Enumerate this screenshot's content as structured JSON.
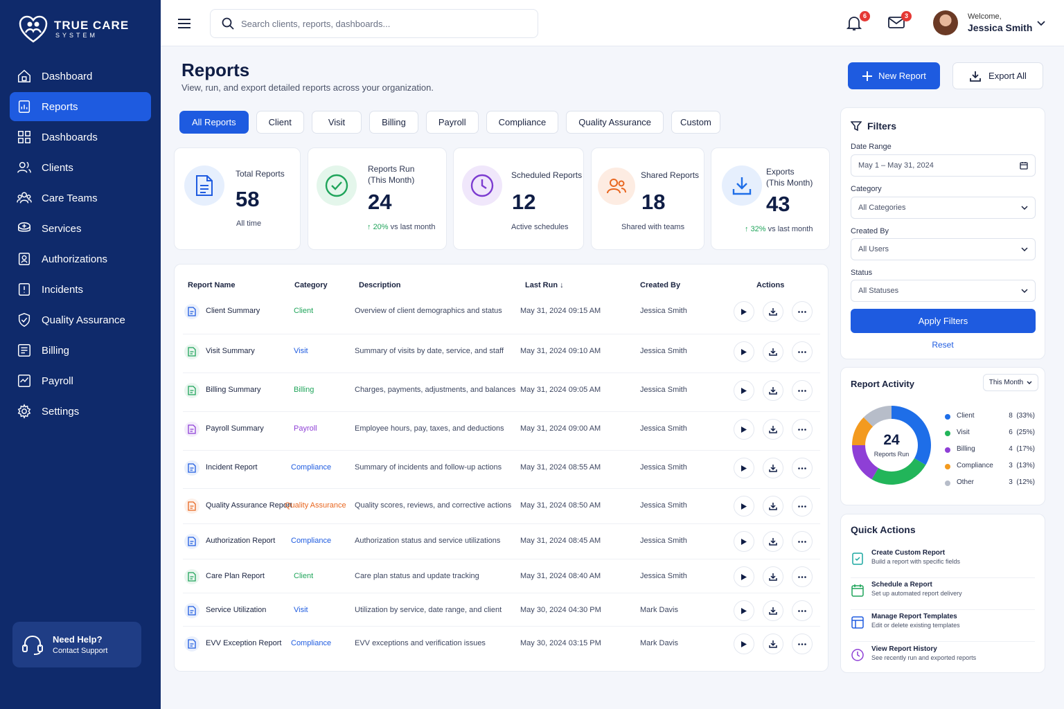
{
  "brand": {
    "name": "TRUE CARE",
    "sub": "SYSTEM"
  },
  "sidebar": {
    "items": [
      {
        "label": "Dashboard",
        "icon": "home-icon"
      },
      {
        "label": "Reports",
        "icon": "report-icon",
        "active": true
      },
      {
        "label": "Dashboards",
        "icon": "grid-icon"
      },
      {
        "label": "Clients",
        "icon": "users-icon"
      },
      {
        "label": "Care Teams",
        "icon": "team-icon"
      },
      {
        "label": "Services",
        "icon": "services-icon"
      },
      {
        "label": "Authorizations",
        "icon": "authorization-icon"
      },
      {
        "label": "Incidents",
        "icon": "incident-icon"
      },
      {
        "label": "Quality Assurance",
        "icon": "shield-check-icon"
      },
      {
        "label": "Billing",
        "icon": "billing-icon"
      },
      {
        "label": "Payroll",
        "icon": "payroll-icon"
      },
      {
        "label": "Settings",
        "icon": "gear-icon"
      }
    ],
    "help": {
      "title": "Need Help?",
      "subtitle": "Contact Support"
    }
  },
  "topbar": {
    "search_placeholder": "Search clients, reports, dashboards...",
    "notifications_count": "6",
    "messages_count": "3",
    "welcome": "Welcome,",
    "user_name": "Jessica Smith"
  },
  "header": {
    "title": "Reports",
    "subtitle": "View, run, and export detailed reports across your organization.",
    "new_report": "New Report",
    "export_all": "Export All"
  },
  "tabs": [
    "All Reports",
    "Client",
    "Visit",
    "Billing",
    "Payroll",
    "Compliance",
    "Quality Assurance",
    "Custom"
  ],
  "stats": [
    {
      "label": "Total Reports",
      "value": "58",
      "foot": "All time"
    },
    {
      "label": "Reports Run\n(This Month)",
      "value": "24",
      "change": "20%",
      "foot": "vs last month"
    },
    {
      "label": "Scheduled Reports",
      "value": "12",
      "foot": "Active schedules"
    },
    {
      "label": "Shared Reports",
      "value": "18",
      "foot": "Shared with teams"
    },
    {
      "label": "Exports\n(This Month)",
      "value": "43",
      "change": "32%",
      "foot": "vs last month"
    }
  ],
  "table": {
    "columns": [
      "Report Name",
      "Category",
      "Description",
      "Last Run",
      "Created By",
      "Actions"
    ],
    "rows": [
      {
        "name": "Client Summary",
        "category": "Client",
        "description": "Overview of client demographics and status",
        "last_run": "May 31, 2024 09:15 AM",
        "created_by": "Jessica Smith",
        "color": "#1e5be0"
      },
      {
        "name": "Visit Summary",
        "category": "Visit",
        "description": "Summary of visits by date, service, and staff",
        "last_run": "May 31, 2024 09:10 AM",
        "created_by": "Jessica Smith",
        "color": "#1fa45a"
      },
      {
        "name": "Billing Summary",
        "category": "Billing",
        "description": "Charges, payments, adjustments, and balances",
        "last_run": "May 31, 2024 09:05 AM",
        "created_by": "Jessica Smith",
        "color": "#1fa45a"
      },
      {
        "name": "Payroll Summary",
        "category": "Payroll",
        "description": "Employee hours, pay, taxes, and deductions",
        "last_run": "May 31, 2024 09:00 AM",
        "created_by": "Jessica Smith",
        "color": "#8e3fd6"
      },
      {
        "name": "Incident Report",
        "category": "Compliance",
        "description": "Summary of incidents and follow-up actions",
        "last_run": "May 31, 2024 08:55 AM",
        "created_by": "Jessica Smith",
        "color": "#1e5be0"
      },
      {
        "name": "Quality Assurance Report",
        "category": "Quality Assurance",
        "description": "Quality scores, reviews, and corrective actions",
        "last_run": "May 31, 2024 08:50 AM",
        "created_by": "Jessica Smith",
        "color": "#e8661f"
      },
      {
        "name": "Authorization Report",
        "category": "Compliance",
        "description": "Authorization status and service utilizations",
        "last_run": "May 31, 2024 08:45 AM",
        "created_by": "Jessica Smith",
        "color": "#1e5be0"
      },
      {
        "name": "Care Plan Report",
        "category": "Client",
        "description": "Care plan status and update tracking",
        "last_run": "May 31, 2024 08:40 AM",
        "created_by": "Jessica Smith",
        "color": "#1fa45a"
      },
      {
        "name": "Service Utilization",
        "category": "Visit",
        "description": "Utilization by service, date range, and client",
        "last_run": "May 30, 2024 04:30 PM",
        "created_by": "Mark Davis",
        "color": "#1e5be0"
      },
      {
        "name": "EVV Exception Report",
        "category": "Compliance",
        "description": "EVV exceptions and verification issues",
        "last_run": "May 30, 2024 03:15 PM",
        "created_by": "Mark Davis",
        "color": "#1e5be0"
      }
    ]
  },
  "filters": {
    "title": "Filters",
    "date_range_label": "Date Range",
    "date_range_value": "May 1 – May 31, 2024",
    "category_label": "Category",
    "category_value": "All Categories",
    "created_by_label": "Created By",
    "created_by_value": "All Users",
    "status_label": "Status",
    "status_value": "All Statuses",
    "apply": "Apply Filters",
    "reset": "Reset"
  },
  "activity": {
    "title": "Report Activity",
    "period": "This Month",
    "total": "24",
    "total_label": "Reports Run",
    "chart_data": {
      "type": "pie",
      "categories": [
        "Client",
        "Visit",
        "Billing",
        "Compliance",
        "Other"
      ],
      "values": [
        8,
        6,
        4,
        3,
        3
      ],
      "percent_labels": [
        "(33%)",
        "(25%)",
        "(17%)",
        "(13%)",
        "(12%)"
      ],
      "colors": [
        "#1e6ee8",
        "#22b55a",
        "#8e3fd6",
        "#f39a1f",
        "#b7bdc9"
      ]
    }
  },
  "quick_actions": {
    "title": "Quick Actions",
    "items": [
      {
        "title": "Create Custom Report",
        "subtitle": "Build a report with specific fields",
        "color": "#1aa7a0"
      },
      {
        "title": "Schedule a Report",
        "subtitle": "Set up automated report delivery",
        "color": "#1fa45a"
      },
      {
        "title": "Manage Report Templates",
        "subtitle": "Edit or delete existing templates",
        "color": "#1e5be0"
      },
      {
        "title": "View Report History",
        "subtitle": "See recently run and exported reports",
        "color": "#8e3fd6"
      }
    ]
  }
}
